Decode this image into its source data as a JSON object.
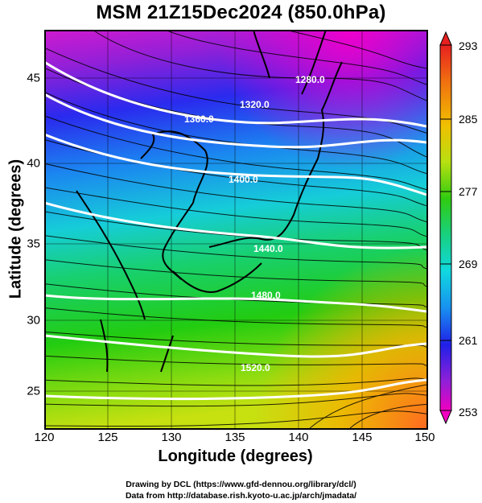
{
  "title": "MSM 21Z15Dec2024 (850.0hPa)",
  "x_axis": {
    "label": "Longitude (degrees)",
    "ticks": [
      "120",
      "125",
      "130",
      "135",
      "140",
      "145",
      "150"
    ]
  },
  "y_axis": {
    "label": "Latitude  (degrees)",
    "ticks": [
      "25",
      "30",
      "35",
      "40",
      "45"
    ]
  },
  "colorbar": {
    "labels": [
      "293",
      "285",
      "277",
      "269",
      "261",
      "253"
    ]
  },
  "contours": [
    "1280.0",
    "1320.0",
    "1360.0",
    "1400.0",
    "1440.0",
    "1480.0",
    "1520.0"
  ],
  "credits": {
    "line1": "Drawing by DCL (https://www.gfd-dennou.org/library/dcl/)",
    "line2": "Data from http://database.rish.kyoto-u.ac.jp/arch/jmadata/"
  },
  "colors": {
    "warm": "#ff7f1e",
    "cold": "#c000c0",
    "mid": "#19d219",
    "contour": "#ffffff"
  }
}
